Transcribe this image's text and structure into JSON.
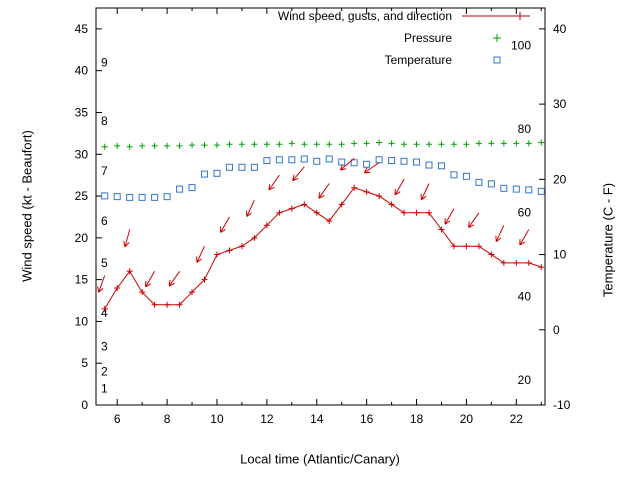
{
  "chart_data": {
    "type": "line",
    "xlabel": "Local time (Atlantic/Canary)",
    "ylabel_left": "Wind speed (kt - Beaufort)",
    "ylabel_right": "Temperature (C - F)",
    "xlim": [
      5.15,
      23.15
    ],
    "ylim_left": [
      0,
      47.5
    ],
    "ylim_right": [
      -10,
      42.8
    ],
    "grid": false,
    "legend_position": "top-right-inside",
    "colors": {
      "wind": "#cc0000",
      "pressure": "#00a000",
      "temperature": "#3377cc",
      "axis": "#000000"
    },
    "axes": {
      "x_major_ticks": [
        6,
        8,
        10,
        12,
        14,
        16,
        18,
        20,
        22
      ],
      "x_minor_ticks": [
        7,
        9,
        11,
        13,
        15,
        17,
        19,
        21,
        23
      ],
      "y_left_ticks": [
        0,
        5,
        10,
        15,
        20,
        25,
        30,
        35,
        40,
        45
      ],
      "y_right_ticks": [
        -10,
        0,
        10,
        20,
        30,
        40
      ]
    },
    "beaufort_labels": [
      {
        "label": "1",
        "kt": 2
      },
      {
        "label": "2",
        "kt": 4
      },
      {
        "label": "3",
        "kt": 7
      },
      {
        "label": "4",
        "kt": 11
      },
      {
        "label": "5",
        "kt": 17
      },
      {
        "label": "6",
        "kt": 22
      },
      {
        "label": "7",
        "kt": 28
      },
      {
        "label": "8",
        "kt": 34
      },
      {
        "label": "9",
        "kt": 41
      }
    ],
    "fahrenheit_labels": [
      {
        "label": "20",
        "c": -6.7
      },
      {
        "label": "40",
        "c": 4.4
      },
      {
        "label": "60",
        "c": 15.6
      },
      {
        "label": "80",
        "c": 26.7
      },
      {
        "label": "100",
        "c": 37.8
      }
    ],
    "x": [
      5.5,
      6,
      6.5,
      7,
      7.5,
      8,
      8.5,
      9,
      9.5,
      10,
      10.5,
      11,
      11.5,
      12,
      12.5,
      13,
      13.5,
      14,
      14.5,
      15,
      15.5,
      16,
      16.5,
      17,
      17.5,
      18,
      18.5,
      19,
      19.5,
      20,
      20.5,
      21,
      21.5,
      22,
      22.5,
      23
    ],
    "series": [
      {
        "name": "Wind speed, gusts, and direction",
        "type": "line+points",
        "marker": "plus",
        "axis": "left",
        "unit": "kt",
        "values": [
          11.5,
          14,
          16,
          13.5,
          12,
          12,
          12,
          13.5,
          15,
          18,
          18.5,
          19,
          20,
          21.5,
          23,
          23.5,
          24,
          23,
          22,
          24,
          26,
          25.5,
          25,
          24,
          23,
          23,
          23,
          21,
          19,
          19,
          19,
          18,
          17,
          17,
          17,
          16.5
        ]
      },
      {
        "name": "Pressure",
        "type": "points",
        "marker": "plus",
        "axis": "left",
        "values": [
          30.9,
          31,
          30.9,
          31,
          31,
          31,
          31,
          31.1,
          31.1,
          31.1,
          31.2,
          31.2,
          31.2,
          31.2,
          31.2,
          31.3,
          31.2,
          31.2,
          31.2,
          31.2,
          31.3,
          31.3,
          31.4,
          31.3,
          31.2,
          31.2,
          31.2,
          31.2,
          31.2,
          31.2,
          31.3,
          31.3,
          31.3,
          31.3,
          31.3,
          31.4
        ]
      },
      {
        "name": "Temperature",
        "type": "points",
        "marker": "open-square",
        "axis": "right",
        "unit": "C",
        "values": [
          17.8,
          17.7,
          17.6,
          17.6,
          17.6,
          17.7,
          18.7,
          18.9,
          20.7,
          20.8,
          21.6,
          21.6,
          21.6,
          22.5,
          22.6,
          22.6,
          22.7,
          22.4,
          22.7,
          22.3,
          22.2,
          22.0,
          22.6,
          22.5,
          22.4,
          22.3,
          21.9,
          21.8,
          20.6,
          20.4,
          19.6,
          19.4,
          18.8,
          18.7,
          18.6,
          18.4
        ]
      }
    ],
    "gust_arrows": [
      {
        "t": 5.5,
        "gust": 15.5,
        "angle": 200
      },
      {
        "t": 6.5,
        "gust": 21,
        "angle": 195
      },
      {
        "t": 7.5,
        "gust": 16,
        "angle": 210
      },
      {
        "t": 8.5,
        "gust": 16,
        "angle": 215
      },
      {
        "t": 9.5,
        "gust": 19,
        "angle": 205
      },
      {
        "t": 10.5,
        "gust": 22.5,
        "angle": 210
      },
      {
        "t": 11.5,
        "gust": 24.5,
        "angle": 205
      },
      {
        "t": 12.5,
        "gust": 27.5,
        "angle": 215
      },
      {
        "t": 13.5,
        "gust": 28.5,
        "angle": 220
      },
      {
        "t": 14.5,
        "gust": 26.5,
        "angle": 215
      },
      {
        "t": 15.5,
        "gust": 29.5,
        "angle": 230
      },
      {
        "t": 16.5,
        "gust": 29,
        "angle": 235
      },
      {
        "t": 17.5,
        "gust": 27,
        "angle": 210
      },
      {
        "t": 18.5,
        "gust": 26.5,
        "angle": 205
      },
      {
        "t": 19.5,
        "gust": 23.5,
        "angle": 210
      },
      {
        "t": 20.5,
        "gust": 23,
        "angle": 215
      },
      {
        "t": 21.5,
        "gust": 21.5,
        "angle": 205
      },
      {
        "t": 22.5,
        "gust": 21,
        "angle": 210
      }
    ],
    "legend": {
      "entries": [
        {
          "label": "Wind speed, gusts, and direction",
          "sample": "line+plus",
          "color": "#cc0000"
        },
        {
          "label": "Pressure",
          "sample": "plus",
          "color": "#00a000"
        },
        {
          "label": "Temperature",
          "sample": "open-square",
          "color": "#3377cc"
        }
      ]
    }
  }
}
